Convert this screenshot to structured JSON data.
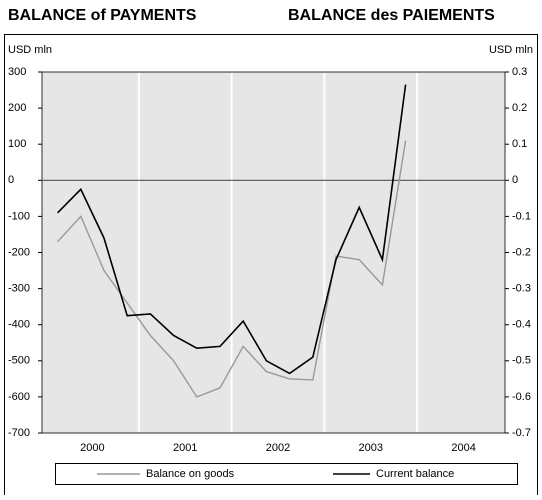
{
  "chart_data": {
    "type": "line",
    "title": "BALANCE of PAYMENTS",
    "title_right": "BALANCE des PAIEMENTS",
    "y_unit": "USD mln",
    "y2_unit": "USD mln",
    "year_labels": [
      "2000",
      "2001",
      "2002",
      "2003",
      "2004"
    ],
    "categories": [
      null,
      null,
      null,
      null,
      null,
      null,
      null,
      null,
      null,
      null,
      null,
      null,
      null,
      null,
      null,
      null
    ],
    "series": [
      {
        "name": "Balance on goods",
        "color": "#999999",
        "values": [
          -170,
          -100,
          -250,
          -340,
          -430,
          -500,
          -600,
          -575,
          -460,
          -530,
          -550,
          -553,
          -210,
          -220,
          -290,
          110
        ]
      },
      {
        "name": "Current balance",
        "color": "#000000",
        "values": [
          -90,
          -25,
          -160,
          -375,
          -370,
          -430,
          -465,
          -460,
          -390,
          -500,
          -535,
          -490,
          -220,
          -75,
          -220,
          265
        ]
      }
    ],
    "ylim": [
      -700,
      300
    ],
    "yticks": [
      -700,
      -600,
      -500,
      -400,
      -300,
      -200,
      -100,
      0,
      100,
      200,
      300
    ],
    "y2lim": [
      -0.7,
      0.3
    ],
    "y2ticks": [
      -0.7,
      -0.6,
      -0.5,
      -0.4,
      -0.3,
      -0.2,
      -0.1,
      0,
      0.1,
      0.2,
      0.3
    ],
    "grid": true
  }
}
